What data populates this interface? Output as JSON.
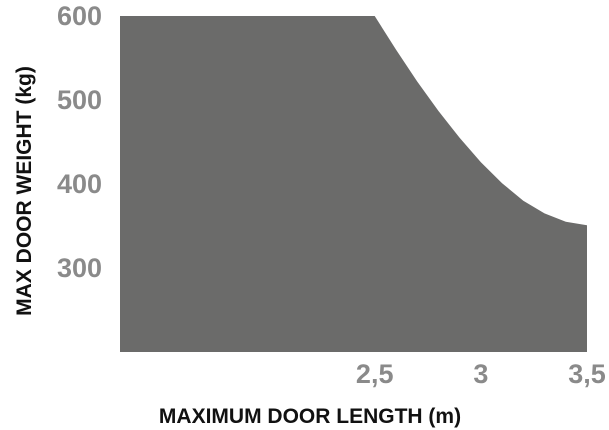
{
  "chart_data": {
    "type": "area",
    "title": "",
    "xlabel": "MAXIMUM DOOR LENGTH (m)",
    "ylabel": "MAX DOOR WEIGHT (kg)",
    "x_ticks": [
      {
        "value": 2.5,
        "label": "2,5"
      },
      {
        "value": 3.0,
        "label": "3"
      },
      {
        "value": 3.5,
        "label": "3,5"
      }
    ],
    "y_ticks": [
      {
        "value": 300,
        "label": "300"
      },
      {
        "value": 400,
        "label": "400"
      },
      {
        "value": 500,
        "label": "500"
      },
      {
        "value": 600,
        "label": "600"
      }
    ],
    "xlim": [
      1.3,
      3.5
    ],
    "ylim": [
      200,
      600
    ],
    "grid": false,
    "series": [
      {
        "fill_color": "#6b6b6a",
        "x": [
          1.3,
          2.5,
          2.6,
          2.7,
          2.8,
          2.9,
          3.0,
          3.1,
          3.2,
          3.3,
          3.4,
          3.5
        ],
        "values": [
          600,
          600,
          560,
          522,
          487,
          455,
          426,
          401,
          380,
          365,
          355,
          351
        ]
      }
    ]
  }
}
